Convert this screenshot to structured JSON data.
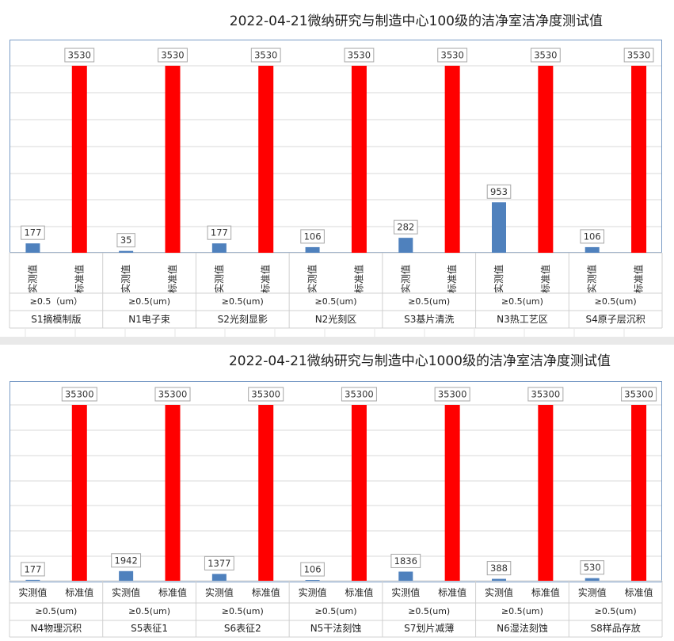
{
  "chart_data": [
    {
      "type": "bar",
      "title": "2022-04-21微纳研究与制造中心100级的洁净室洁净度测试值",
      "series_labels": [
        "实测值",
        "标准值"
      ],
      "colors": {
        "measured": "#4f81bd",
        "standard": "#ff0000"
      },
      "ylim": [
        0,
        3530
      ],
      "grid": true,
      "label_orientation": "vertical",
      "groups": [
        {
          "location": "S1摘模制版",
          "size": "≥0.5（um）",
          "measured": 177,
          "standard": 3530
        },
        {
          "location": "N1电子束",
          "size": "≥0.5(um)",
          "measured": 35,
          "standard": 3530
        },
        {
          "location": "S2光刻显影",
          "size": "≥0.5(um)",
          "measured": 177,
          "standard": 3530
        },
        {
          "location": "N2光刻区",
          "size": "≥0.5(um)",
          "measured": 106,
          "standard": 3530
        },
        {
          "location": "S3基片清洗",
          "size": "≥0.5(um)",
          "measured": 282,
          "standard": 3530
        },
        {
          "location": "N3热工艺区",
          "size": "≥0.5(um)",
          "measured": 953,
          "standard": 3530
        },
        {
          "location": "S4原子层沉积",
          "size": "≥0.5(um)",
          "measured": 106,
          "standard": 3530
        }
      ]
    },
    {
      "type": "bar",
      "title": "2022-04-21微纳研究与制造中心1000级的洁净室洁净度测试值",
      "series_labels": [
        "实测值",
        "标准值"
      ],
      "colors": {
        "measured": "#4f81bd",
        "standard": "#ff0000"
      },
      "ylim": [
        0,
        35300
      ],
      "grid": true,
      "label_orientation": "horizontal",
      "groups": [
        {
          "location": "N4物理沉积",
          "size": "≥0.5(um)",
          "measured": 177,
          "standard": 35300
        },
        {
          "location": "S5表征1",
          "size": "≥0.5(um)",
          "measured": 1942,
          "standard": 35300
        },
        {
          "location": "S6表征2",
          "size": "≥0.5(um)",
          "measured": 1377,
          "standard": 35300
        },
        {
          "location": "N5干法刻蚀",
          "size": "≥0.5(um)",
          "measured": 106,
          "standard": 35300
        },
        {
          "location": "S7划片减薄",
          "size": "≥0.5(um)",
          "measured": 1836,
          "standard": 35300
        },
        {
          "location": "N6湿法刻蚀",
          "size": "≥0.5(um)",
          "measured": 388,
          "standard": 35300
        },
        {
          "location": "S8样品存放",
          "size": "≥0.5(um)",
          "measured": 530,
          "standard": 35300
        }
      ]
    }
  ]
}
